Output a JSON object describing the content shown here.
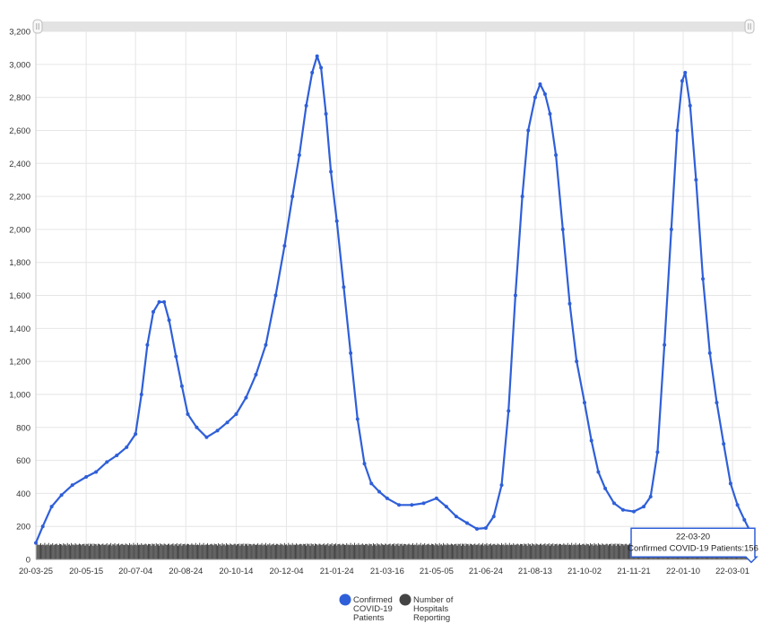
{
  "chart_data": {
    "type": "line",
    "title": "",
    "xlabel": "",
    "ylabel": "",
    "ylim": [
      0,
      3200
    ],
    "y_ticks": [
      0,
      200,
      400,
      600,
      800,
      1000,
      1200,
      1400,
      1600,
      1800,
      2000,
      2200,
      2400,
      2600,
      2800,
      3000,
      3200
    ],
    "y_tick_labels": [
      "0",
      "200",
      "400",
      "600",
      "800",
      "1,000",
      "1,200",
      "1,400",
      "1,600",
      "1,800",
      "2,000",
      "2,200",
      "2,400",
      "2,600",
      "2,800",
      "3,000",
      "3,200"
    ],
    "x_range": [
      "2020-03-25",
      "2022-03-20"
    ],
    "x_ticks": [
      "2020-03-25",
      "2020-05-15",
      "2020-07-04",
      "2020-08-24",
      "2020-10-14",
      "2020-12-04",
      "2021-01-24",
      "2021-03-16",
      "2021-05-05",
      "2021-06-24",
      "2021-08-13",
      "2021-10-02",
      "2021-11-21",
      "2022-01-10",
      "2022-03-01"
    ],
    "x_tick_labels": [
      "20-03-25",
      "20-05-15",
      "20-07-04",
      "20-08-24",
      "20-10-14",
      "20-12-04",
      "21-01-24",
      "21-03-16",
      "21-05-05",
      "21-06-24",
      "21-08-13",
      "21-10-02",
      "21-11-21",
      "22-01-10",
      "22-03-01"
    ],
    "grid": true,
    "legend_position": "bottom",
    "series": [
      {
        "name": "Confirmed COVID-19 Patients",
        "legend_lines": [
          "Confirmed",
          "COVID-19",
          "Patients"
        ],
        "color": "#2f5fd8",
        "points": [
          [
            "2020-03-25",
            100
          ],
          [
            "2020-04-01",
            200
          ],
          [
            "2020-04-10",
            320
          ],
          [
            "2020-04-20",
            390
          ],
          [
            "2020-05-01",
            450
          ],
          [
            "2020-05-15",
            500
          ],
          [
            "2020-05-25",
            530
          ],
          [
            "2020-06-05",
            590
          ],
          [
            "2020-06-15",
            630
          ],
          [
            "2020-06-25",
            680
          ],
          [
            "2020-07-04",
            760
          ],
          [
            "2020-07-10",
            1000
          ],
          [
            "2020-07-16",
            1300
          ],
          [
            "2020-07-22",
            1500
          ],
          [
            "2020-07-28",
            1560
          ],
          [
            "2020-08-02",
            1560
          ],
          [
            "2020-08-07",
            1450
          ],
          [
            "2020-08-14",
            1230
          ],
          [
            "2020-08-20",
            1050
          ],
          [
            "2020-08-26",
            880
          ],
          [
            "2020-09-04",
            800
          ],
          [
            "2020-09-14",
            740
          ],
          [
            "2020-09-25",
            780
          ],
          [
            "2020-10-05",
            830
          ],
          [
            "2020-10-14",
            880
          ],
          [
            "2020-10-24",
            980
          ],
          [
            "2020-11-03",
            1120
          ],
          [
            "2020-11-13",
            1300
          ],
          [
            "2020-11-23",
            1600
          ],
          [
            "2020-12-02",
            1900
          ],
          [
            "2020-12-10",
            2200
          ],
          [
            "2020-12-17",
            2450
          ],
          [
            "2020-12-24",
            2750
          ],
          [
            "2020-12-30",
            2950
          ],
          [
            "2021-01-04",
            3050
          ],
          [
            "2021-01-08",
            2980
          ],
          [
            "2021-01-13",
            2700
          ],
          [
            "2021-01-18",
            2350
          ],
          [
            "2021-01-24",
            2050
          ],
          [
            "2021-01-31",
            1650
          ],
          [
            "2021-02-07",
            1250
          ],
          [
            "2021-02-14",
            850
          ],
          [
            "2021-02-21",
            580
          ],
          [
            "2021-02-28",
            460
          ],
          [
            "2021-03-08",
            410
          ],
          [
            "2021-03-16",
            370
          ],
          [
            "2021-03-28",
            330
          ],
          [
            "2021-04-10",
            330
          ],
          [
            "2021-04-22",
            340
          ],
          [
            "2021-05-05",
            370
          ],
          [
            "2021-05-15",
            320
          ],
          [
            "2021-05-25",
            260
          ],
          [
            "2021-06-05",
            220
          ],
          [
            "2021-06-15",
            185
          ],
          [
            "2021-06-24",
            190
          ],
          [
            "2021-07-02",
            260
          ],
          [
            "2021-07-10",
            450
          ],
          [
            "2021-07-17",
            900
          ],
          [
            "2021-07-24",
            1600
          ],
          [
            "2021-07-31",
            2200
          ],
          [
            "2021-08-06",
            2600
          ],
          [
            "2021-08-13",
            2800
          ],
          [
            "2021-08-18",
            2880
          ],
          [
            "2021-08-23",
            2820
          ],
          [
            "2021-08-28",
            2700
          ],
          [
            "2021-09-03",
            2450
          ],
          [
            "2021-09-10",
            2000
          ],
          [
            "2021-09-17",
            1550
          ],
          [
            "2021-09-24",
            1200
          ],
          [
            "2021-10-02",
            950
          ],
          [
            "2021-10-09",
            720
          ],
          [
            "2021-10-16",
            530
          ],
          [
            "2021-10-23",
            430
          ],
          [
            "2021-11-01",
            340
          ],
          [
            "2021-11-10",
            300
          ],
          [
            "2021-11-21",
            290
          ],
          [
            "2021-12-01",
            320
          ],
          [
            "2021-12-08",
            380
          ],
          [
            "2021-12-15",
            650
          ],
          [
            "2021-12-22",
            1300
          ],
          [
            "2021-12-29",
            2000
          ],
          [
            "2022-01-04",
            2600
          ],
          [
            "2022-01-09",
            2900
          ],
          [
            "2022-01-12",
            2950
          ],
          [
            "2022-01-17",
            2750
          ],
          [
            "2022-01-23",
            2300
          ],
          [
            "2022-01-30",
            1700
          ],
          [
            "2022-02-06",
            1250
          ],
          [
            "2022-02-13",
            950
          ],
          [
            "2022-02-20",
            700
          ],
          [
            "2022-02-27",
            460
          ],
          [
            "2022-03-06",
            330
          ],
          [
            "2022-03-13",
            240
          ],
          [
            "2022-03-20",
            156
          ]
        ]
      },
      {
        "name": "Number of Hospitals Reporting",
        "legend_lines": [
          "Number of",
          "Hospitals",
          "Reporting"
        ],
        "color": "#444444",
        "range": [
          60,
          100
        ]
      }
    ],
    "tooltip": {
      "date": "22-03-20",
      "label": "Confirmed COVID-19 Patients:156"
    }
  }
}
